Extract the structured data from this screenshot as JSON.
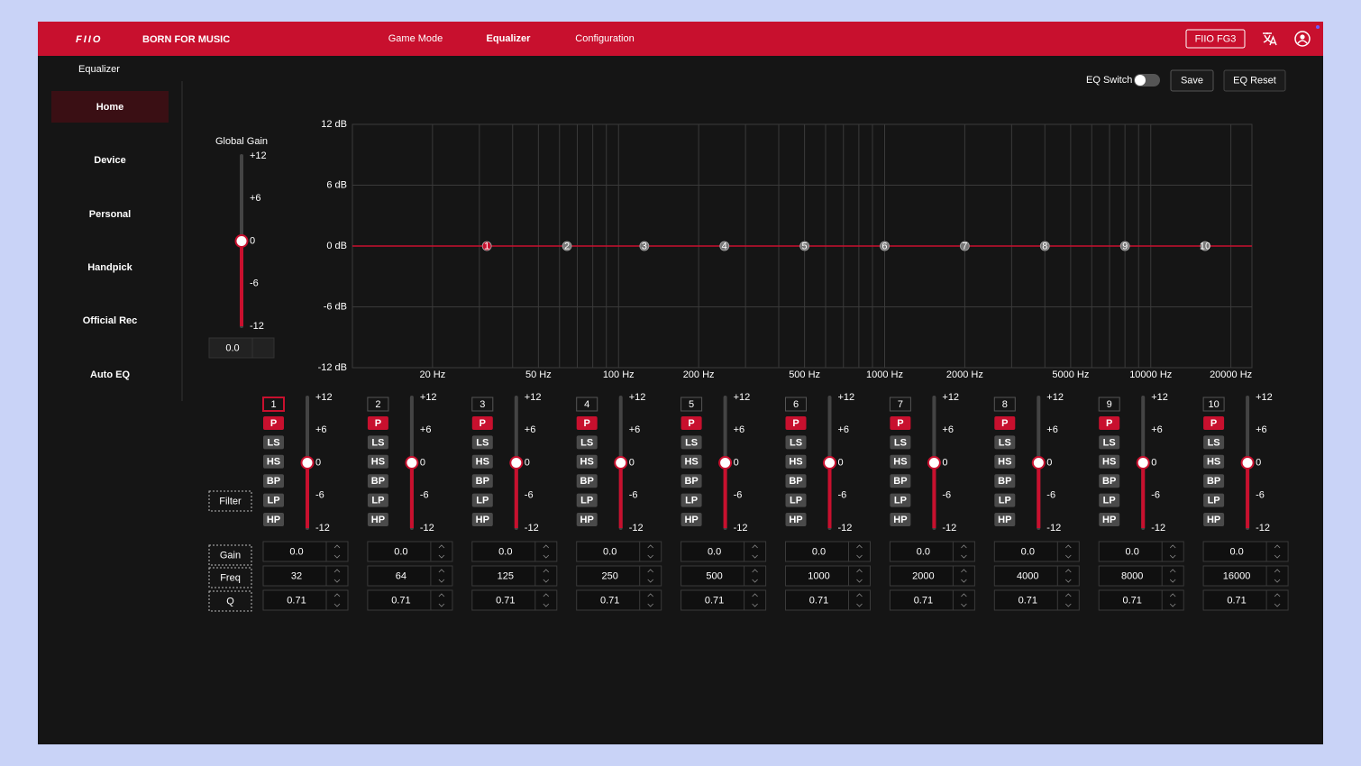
{
  "header": {
    "logo": "FIIO",
    "tagline": "BORN FOR MUSIC",
    "nav": [
      "Game Mode",
      "Equalizer",
      "Configuration"
    ],
    "active_nav": 1,
    "device": "FIIO FG3"
  },
  "page_title": "Equalizer",
  "sidebar": {
    "items": [
      "Home",
      "Device",
      "Personal",
      "Handpick",
      "Official Rec",
      "Auto EQ"
    ],
    "active": 0
  },
  "toolbar": {
    "eq_switch": "EQ Switch",
    "eq_on": false,
    "save": "Save",
    "reset": "EQ Reset"
  },
  "global_gain": {
    "label": "Global Gain",
    "ticks": [
      {
        "value": 12,
        "label": "+12"
      },
      {
        "value": 6,
        "label": "+6"
      },
      0,
      -6,
      -12
    ],
    "value": {
      "value": 0,
      "label": "0.0"
    }
  },
  "graph": {
    "ylim": [
      -12,
      12
    ],
    "yticks": [
      {
        "value": 12,
        "label": "12 dB"
      },
      {
        "value": 6,
        "label": "6 dB"
      },
      {
        "value": 0,
        "label": "0 dB"
      },
      {
        "value": -6,
        "label": "-6 dB"
      },
      {
        "value": -12,
        "label": "-12 dB"
      }
    ],
    "xlim": [
      10,
      24000
    ],
    "log_x": true,
    "xticks": [
      {
        "value": 20,
        "label": "20 Hz"
      },
      {
        "value": 50,
        "label": "50 Hz"
      },
      {
        "value": 100,
        "label": "100 Hz"
      },
      {
        "value": 200,
        "label": "200 Hz"
      },
      {
        "value": 500,
        "label": "500 Hz"
      },
      {
        "value": 1000,
        "label": "1000 Hz"
      },
      {
        "value": 2000,
        "label": "2000 Hz"
      },
      {
        "value": 5000,
        "label": "5000 Hz"
      },
      {
        "value": 10000,
        "label": "10000 Hz"
      },
      {
        "value": 20000,
        "label": "20000 Hz"
      }
    ],
    "x_grid": [
      20,
      30,
      40,
      50,
      60,
      70,
      80,
      90,
      100,
      200,
      300,
      400,
      500,
      600,
      700,
      800,
      900,
      1000,
      2000,
      3000,
      4000,
      5000,
      6000,
      7000,
      8000,
      9000,
      10000,
      20000
    ]
  },
  "band_scale": [
    {
      "value": 12,
      "label": "+12"
    },
    {
      "value": 6,
      "label": "+6"
    },
    0,
    -6,
    -12
  ],
  "filters": [
    "P",
    "LS",
    "HS",
    "BP",
    "LP",
    "HP"
  ],
  "row_labels": {
    "filter": "Filter",
    "gain": "Gain",
    "freq": "Freq",
    "q": "Q"
  },
  "bands": [
    {
      "number": 1,
      "filter": "P",
      "gain": {
        "value": 0,
        "label": "0.0"
      },
      "freq": 32,
      "q": 0.71,
      "selected": true
    },
    {
      "number": 2,
      "filter": "P",
      "gain": {
        "value": 0,
        "label": "0.0"
      },
      "freq": 64,
      "q": 0.71,
      "selected": false
    },
    {
      "number": 3,
      "filter": "P",
      "gain": {
        "value": 0,
        "label": "0.0"
      },
      "freq": 125,
      "q": 0.71,
      "selected": false
    },
    {
      "number": 4,
      "filter": "P",
      "gain": {
        "value": 0,
        "label": "0.0"
      },
      "freq": 250,
      "q": 0.71,
      "selected": false
    },
    {
      "number": 5,
      "filter": "P",
      "gain": {
        "value": 0,
        "label": "0.0"
      },
      "freq": 500,
      "q": 0.71,
      "selected": false
    },
    {
      "number": 6,
      "filter": "P",
      "gain": {
        "value": 0,
        "label": "0.0"
      },
      "freq": 1000,
      "q": 0.71,
      "selected": false
    },
    {
      "number": 7,
      "filter": "P",
      "gain": {
        "value": 0,
        "label": "0.0"
      },
      "freq": 2000,
      "q": 0.71,
      "selected": false
    },
    {
      "number": 8,
      "filter": "P",
      "gain": {
        "value": 0,
        "label": "0.0"
      },
      "freq": 4000,
      "q": 0.71,
      "selected": false
    },
    {
      "number": 9,
      "filter": "P",
      "gain": {
        "value": 0,
        "label": "0.0"
      },
      "freq": 8000,
      "q": 0.71,
      "selected": false
    },
    {
      "number": 10,
      "filter": "P",
      "gain": {
        "value": 0,
        "label": "0.0"
      },
      "freq": 16000,
      "q": 0.71,
      "selected": false
    }
  ]
}
